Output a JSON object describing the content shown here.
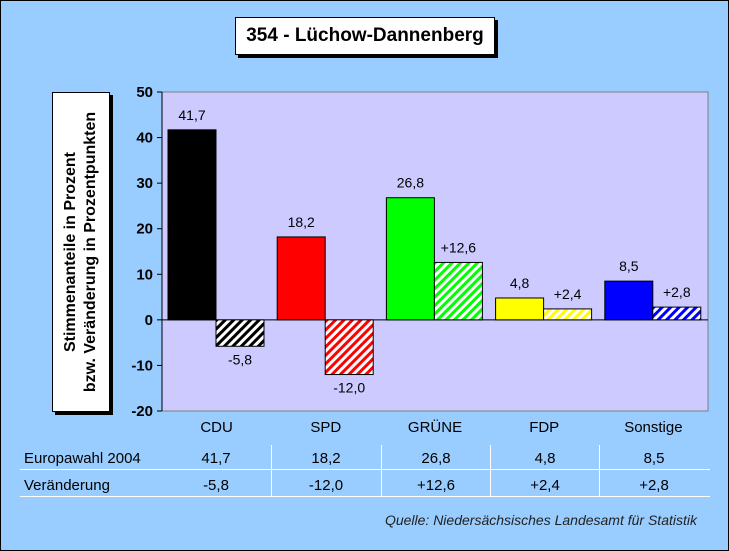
{
  "title": "354 - Lüchow-Dannenberg",
  "ylabel_line1": "Stimmenanteile in Prozent",
  "ylabel_line2": "bzw. Veränderung in Prozentpunkten",
  "source": "Quelle: Niedersächsisches Landesamt für Statistik",
  "colors": {
    "background": "#99ccff",
    "plot_area": "#cccaff",
    "CDU": "#000000",
    "SPD": "#ff0000",
    "GRÜNE": "#00ff00",
    "FDP": "#ffff00",
    "Sonstige": "#0000ff"
  },
  "chart_data": {
    "type": "bar",
    "categories": [
      "CDU",
      "SPD",
      "GRÜNE",
      "FDP",
      "Sonstige"
    ],
    "series": [
      {
        "name": "Europawahl 2004",
        "values": [
          41.7,
          18.2,
          26.8,
          4.8,
          8.5
        ],
        "labels": [
          "41,7",
          "18,2",
          "26,8",
          "4,8",
          "8,5"
        ],
        "pattern": "solid"
      },
      {
        "name": "Veränderung",
        "values": [
          -5.8,
          -12.0,
          12.6,
          2.4,
          2.8
        ],
        "labels": [
          "-5,8",
          "-12,0",
          "+12,6",
          "+2,4",
          "+2,8"
        ],
        "pattern": "hatched"
      }
    ],
    "ylim": [
      -20,
      50
    ],
    "yticks": [
      "50",
      "40",
      "30",
      "20",
      "10",
      "0",
      "-10",
      "-20"
    ],
    "ytick_values": [
      50,
      40,
      30,
      20,
      10,
      0,
      -10,
      -20
    ],
    "grid": false,
    "legend": "table-below"
  },
  "table": {
    "rows": [
      {
        "label": "Europawahl 2004",
        "values": [
          "41,7",
          "18,2",
          "26,8",
          "4,8",
          "8,5"
        ]
      },
      {
        "label": "Veränderung",
        "values": [
          "-5,8",
          "-12,0",
          "+12,6",
          "+2,4",
          "+2,8"
        ]
      }
    ]
  }
}
